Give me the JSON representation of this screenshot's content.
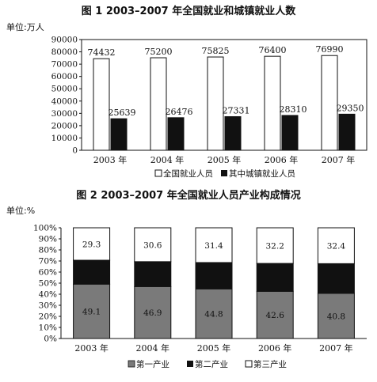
{
  "chart_data": [
    {
      "type": "bar",
      "title": "图 1 2003–2007 年全国就业和城镇就业人数",
      "unit": "单位:万人",
      "categories": [
        "2003 年",
        "2004 年",
        "2005 年",
        "2006 年",
        "2007 年"
      ],
      "series": [
        {
          "name": "全国就业人员",
          "values": [
            74432,
            75200,
            75825,
            76400,
            76990
          ],
          "color": "#ffffff"
        },
        {
          "name": "其中城镇就业人员",
          "values": [
            25639,
            26476,
            27331,
            28310,
            29350
          ],
          "color": "#111111"
        }
      ],
      "ylim": [
        0,
        90000
      ],
      "yticks": [
        "0",
        "10000",
        "20000",
        "30000",
        "40000",
        "50000",
        "60000",
        "70000",
        "80000",
        "90000"
      ],
      "legend": "bottom",
      "grid": false
    },
    {
      "type": "bar",
      "stacked": true,
      "title": "图 2 2003–2007 年全国就业人员产业构成情况",
      "unit": "单位:%",
      "categories": [
        "2003 年",
        "2004 年",
        "2005 年",
        "2006 年",
        "2007 年"
      ],
      "series": [
        {
          "name": "第一产业",
          "values": [
            49.1,
            46.9,
            44.8,
            42.6,
            40.8
          ],
          "labels": [
            "49.1",
            "46.9",
            "44.8",
            "42.6",
            "40.8"
          ],
          "color": "#7a7a7a"
        },
        {
          "name": "第二产业",
          "values": [
            21.6,
            22.5,
            23.8,
            25.2,
            26.8
          ],
          "labels": [
            "",
            "",
            "",
            "",
            ""
          ],
          "color": "#111111"
        },
        {
          "name": "第三产业",
          "values": [
            29.3,
            30.6,
            31.4,
            32.2,
            32.4
          ],
          "labels": [
            "29.3",
            "30.6",
            "31.4",
            "32.2",
            "32.4"
          ],
          "color": "#ffffff"
        }
      ],
      "ylim": [
        0,
        100
      ],
      "yticks": [
        "0%",
        "10%",
        "20%",
        "30%",
        "40%",
        "50%",
        "60%",
        "70%",
        "80%",
        "90%",
        "100%"
      ],
      "legend": "bottom",
      "grid": false
    }
  ]
}
